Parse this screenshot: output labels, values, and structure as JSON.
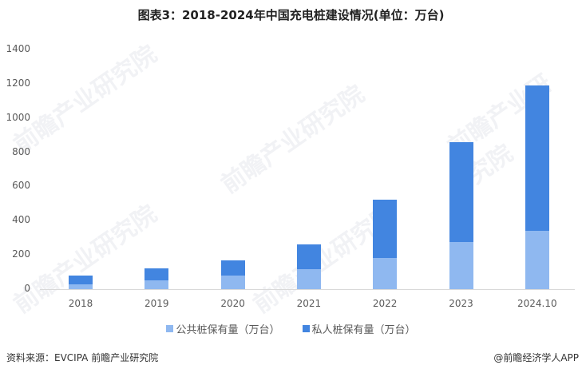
{
  "title": "图表3：2018-2024年中国充电桩建设情况(单位：万台)",
  "colors": {
    "public": "#8fb8f0",
    "private": "#4285e0",
    "axis": "#d9d9d9"
  },
  "chart_data": {
    "type": "bar",
    "stacked": true,
    "title": "图表3：2018-2024年中国充电桩建设情况(单位：万台)",
    "xlabel": "",
    "ylabel": "",
    "ylim": [
      0,
      1400
    ],
    "yticks": [
      0,
      200,
      400,
      600,
      800,
      1000,
      1200,
      1400
    ],
    "grid": false,
    "legend_position": "bottom",
    "categories": [
      "2018",
      "2019",
      "2020",
      "2021",
      "2022",
      "2023",
      "2024.10"
    ],
    "series": [
      {
        "name": "公共桩保有量（万台）",
        "values": [
          30,
          52,
          81,
          115,
          180,
          273,
          339
        ]
      },
      {
        "name": "私人桩保有量（万台）",
        "values": [
          48,
          70,
          87,
          147,
          341,
          587,
          849
        ]
      }
    ],
    "totals": [
      78,
      122,
      168,
      262,
      521,
      860,
      1188
    ]
  },
  "legend": {
    "public_label": "公共桩保有量（万台）",
    "private_label": "私人桩保有量（万台）"
  },
  "footer": {
    "source": "资料来源：EVCIPA 前瞻产业研究院",
    "credit": "@前瞻经济学人APP"
  },
  "watermark": "前瞻产业研究院"
}
